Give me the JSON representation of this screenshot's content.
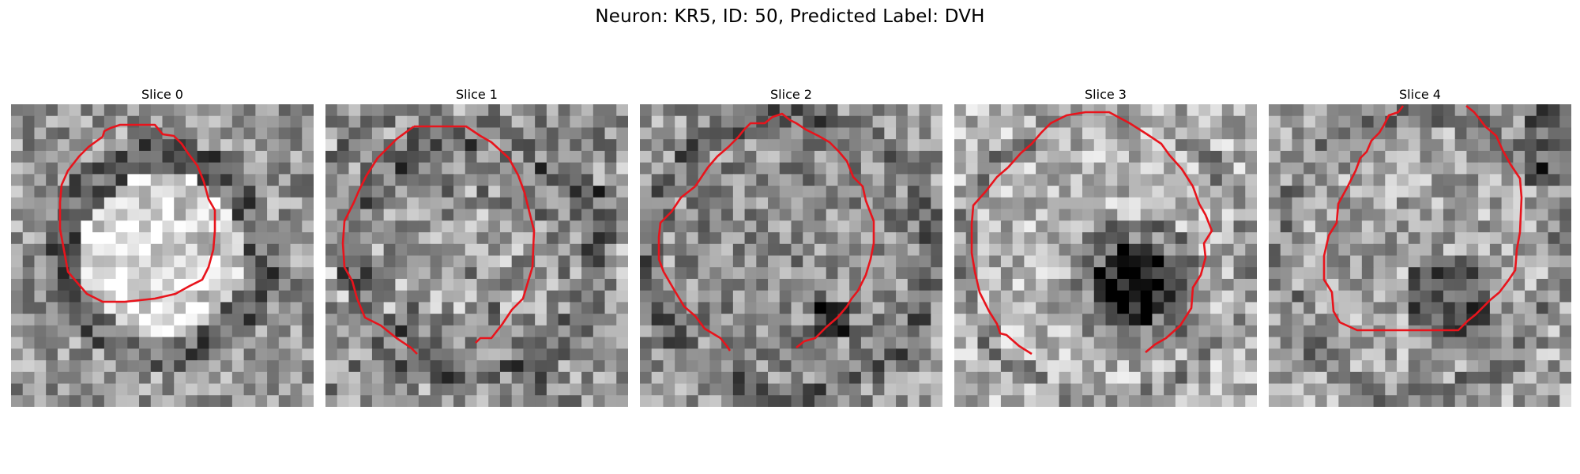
{
  "figure": {
    "title": "Neuron: KR5, ID: 50, Predicted Label: DVH"
  },
  "slices": [
    {
      "label": "Slice 0",
      "seed": 11,
      "texture": {
        "mode": "bright_core"
      },
      "contour_color": "#e8141c"
    },
    {
      "label": "Slice 1",
      "seed": 23,
      "texture": {
        "mode": "noisy_ring"
      },
      "contour_color": "#e8141c"
    },
    {
      "label": "Slice 2",
      "seed": 37,
      "texture": {
        "mode": "ring_mid"
      },
      "contour_color": "#e8141c"
    },
    {
      "label": "Slice 3",
      "seed": 41,
      "texture": {
        "mode": "dark_spot"
      },
      "contour_color": "#e8141c"
    },
    {
      "label": "Slice 4",
      "seed": 53,
      "texture": {
        "mode": "faint_spot"
      },
      "contour_color": "#e8141c"
    }
  ]
}
